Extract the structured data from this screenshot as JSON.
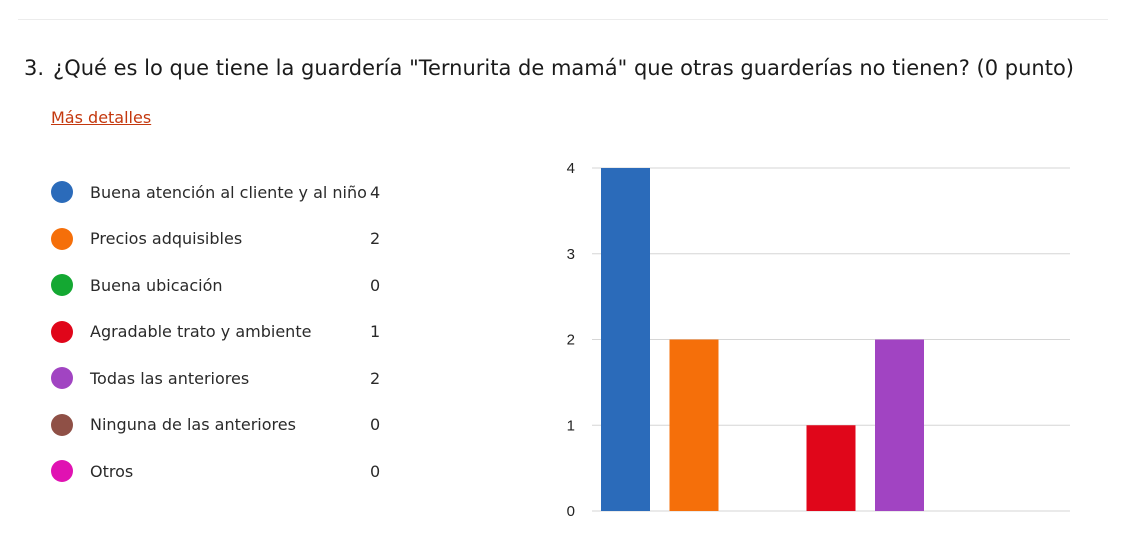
{
  "question": {
    "number": "3.",
    "text": "¿Qué es lo que tiene la guardería \"Ternurita de mamá\" que otras guarderías no tienen? (0 punto)"
  },
  "more_details_link": "Más detalles",
  "chart_data": {
    "type": "bar",
    "categories": [
      "Buena atención al cliente y al niño",
      "Precios adquisibles",
      "Buena ubicación",
      "Agradable trato y ambiente",
      "Todas las anteriores",
      "Ninguna de las anteriores",
      "Otros"
    ],
    "values": [
      4,
      2,
      0,
      1,
      2,
      0,
      0
    ],
    "colors": [
      "#2b6bba",
      "#f56f0a",
      "#14a832",
      "#e0061a",
      "#a144c2",
      "#8f5046",
      "#e012b2"
    ],
    "yticks": [
      0,
      1,
      2,
      3,
      4
    ],
    "ylim": [
      0,
      4
    ],
    "grid": true,
    "legend_placement": "left"
  }
}
